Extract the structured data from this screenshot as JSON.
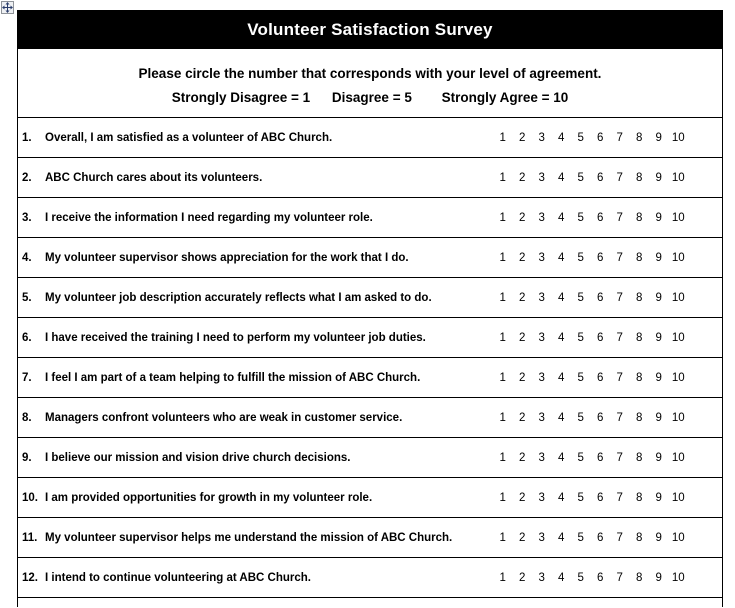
{
  "title": "Volunteer Satisfaction Survey",
  "instructions": {
    "line1": "Please circle the number that corresponds with your level of agreement.",
    "legend": [
      "Strongly Disagree = 1",
      "Disagree = 5",
      "Strongly Agree = 10"
    ]
  },
  "scale": [
    "1",
    "2",
    "3",
    "4",
    "5",
    "6",
    "7",
    "8",
    "9",
    "10"
  ],
  "questions": [
    {
      "num": "1.",
      "text": "Overall, I am satisfied as a volunteer of ABC Church."
    },
    {
      "num": "2.",
      "text": "ABC Church cares about its volunteers."
    },
    {
      "num": "3.",
      "text": "I receive the information I need regarding my volunteer role."
    },
    {
      "num": "4.",
      "text": "My volunteer supervisor shows appreciation for the work that I do."
    },
    {
      "num": "5.",
      "text": "My volunteer job description accurately reflects what I am asked to do."
    },
    {
      "num": "6.",
      "text": "I have received the training I need to perform my volunteer job duties."
    },
    {
      "num": "7.",
      "text": "I feel I am part of a team helping to fulfill the mission of ABC Church."
    },
    {
      "num": "8.",
      "text": "Managers confront volunteers who are weak in customer service."
    },
    {
      "num": "9.",
      "text": "I believe our mission and vision drive church decisions."
    },
    {
      "num": "10.",
      "text": "I am provided opportunities for growth in my volunteer role."
    },
    {
      "num": "11.",
      "text": "My volunteer supervisor helps me understand the mission of ABC Church."
    },
    {
      "num": "12.",
      "text": "I intend to continue volunteering at ABC Church."
    }
  ],
  "icons": {
    "move_handle": "move-cross-icon"
  },
  "colors": {
    "header_bg": "#000000",
    "header_text": "#ffffff",
    "border": "#000000",
    "page_bg": "#ffffff",
    "move_handle_glyph": "#2c3e6b"
  }
}
